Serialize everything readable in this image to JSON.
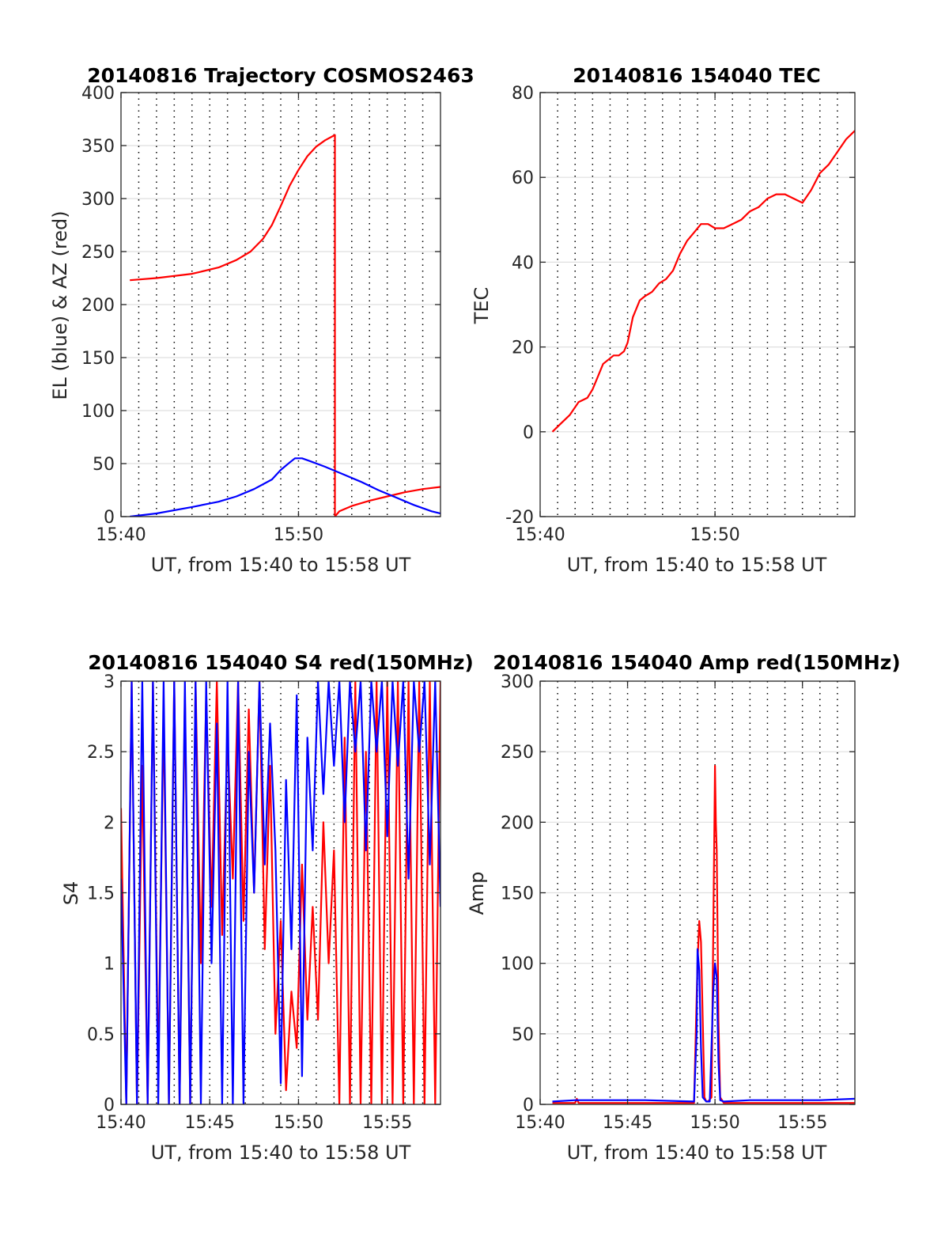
{
  "figure": {
    "background": "#ffffff"
  },
  "colors": {
    "red": "#ff0000",
    "blue": "#0000ff",
    "axis": "#262626",
    "grid": "#dfdfdf",
    "minor_grid": "#000000"
  },
  "chart_data": [
    {
      "id": "trajectory",
      "type": "line",
      "title": "20140816 Trajectory COSMOS2463",
      "xlabel": "UT, from 15:40 to 15:58 UT",
      "ylabel": "EL (blue) & AZ (red)",
      "x_unit": "minutes after 15:40 UT",
      "xlim": [
        0,
        18
      ],
      "ylim": [
        0,
        400
      ],
      "xticks": [
        0,
        10
      ],
      "xtick_labels": [
        "15:40",
        "15:50"
      ],
      "yticks": [
        0,
        50,
        100,
        150,
        200,
        250,
        300,
        350,
        400
      ],
      "ytick_labels": [
        "0",
        "50",
        "100",
        "150",
        "200",
        "250",
        "300",
        "350",
        "400"
      ],
      "grid": "horizontal solid at y ticks, vertical dotted every minute",
      "series": [
        {
          "color": "#ff0000",
          "x": [
            0.5,
            2,
            4,
            5.5,
            6.5,
            7.3,
            8,
            8.5,
            9,
            9.5,
            10,
            10.5,
            11,
            11.5,
            12.05,
            12.05,
            12.05,
            12.3,
            13,
            14,
            15,
            16,
            17,
            18
          ],
          "y": [
            223,
            225,
            229,
            235,
            242,
            250,
            262,
            275,
            293,
            312,
            327,
            340,
            349,
            355,
            360,
            300,
            0,
            5,
            10,
            15,
            19,
            23,
            26,
            28
          ]
        },
        {
          "color": "#0000ff",
          "x": [
            0.5,
            2,
            4,
            5.5,
            6.5,
            7.5,
            8.5,
            9,
            9.5,
            9.8,
            10.2,
            10.7,
            11.5,
            12.5,
            13.5,
            14.5,
            15.5,
            16.5,
            17.5,
            18
          ],
          "y": [
            0,
            3,
            9,
            14,
            19,
            26,
            35,
            44,
            51,
            55,
            55,
            52,
            47,
            40,
            33,
            25,
            18,
            11,
            5,
            3
          ]
        }
      ]
    },
    {
      "id": "tec",
      "type": "line",
      "title": "20140816 154040 TEC",
      "xlabel": "UT, from 15:40 to 15:58 UT",
      "ylabel": "TEC",
      "x_unit": "minutes after 15:40 UT",
      "xlim": [
        0,
        18
      ],
      "ylim": [
        -20,
        80
      ],
      "xticks": [
        0,
        10
      ],
      "xtick_labels": [
        "15:40",
        "15:50"
      ],
      "yticks": [
        -20,
        0,
        20,
        40,
        60,
        80
      ],
      "ytick_labels": [
        "-20",
        "0",
        "20",
        "40",
        "60",
        "80"
      ],
      "grid": "horizontal solid at y ticks, vertical dotted every minute",
      "series": [
        {
          "color": "#ff0000",
          "x": [
            0.7,
            1.2,
            1.7,
            2.2,
            2.7,
            3.0,
            3.3,
            3.6,
            3.9,
            4.2,
            4.5,
            4.8,
            5.0,
            5.3,
            5.7,
            6.0,
            6.4,
            6.8,
            7.2,
            7.6,
            8.0,
            8.4,
            8.8,
            9.2,
            9.6,
            10.0,
            10.5,
            11.0,
            11.5,
            12.0,
            12.5,
            13.0,
            13.5,
            14.0,
            14.5,
            15.0,
            15.5,
            16.0,
            16.5,
            17.0,
            17.5,
            18.0
          ],
          "y": [
            0,
            2,
            4,
            7,
            8,
            10,
            13,
            16,
            17,
            18,
            18,
            19,
            21,
            27,
            31,
            32,
            33,
            35,
            36,
            38,
            42,
            45,
            47,
            49,
            49,
            48,
            48,
            49,
            50,
            52,
            53,
            55,
            56,
            56,
            55,
            54,
            57,
            61,
            63,
            66,
            69,
            71
          ]
        }
      ]
    },
    {
      "id": "s4",
      "type": "line",
      "title": "20140816 154040 S4 red(150MHz)",
      "xlabel": "UT, from 15:40 to 15:58 UT",
      "ylabel": "S4",
      "x_unit": "minutes after 15:40 UT",
      "xlim": [
        0,
        18
      ],
      "ylim": [
        0,
        3
      ],
      "xticks": [
        0,
        5,
        10,
        15
      ],
      "xtick_labels": [
        "15:40",
        "15:45",
        "15:50",
        "15:55"
      ],
      "yticks": [
        0,
        0.5,
        1,
        1.5,
        2,
        2.5,
        3
      ],
      "ytick_labels": [
        "0",
        "0.5",
        "1",
        "1.5",
        "2",
        "2.5",
        "3"
      ],
      "grid": "horizontal solid at y ticks, vertical dotted every minute",
      "series": [
        {
          "color": "#ff0000",
          "x": [
            0.0,
            0.3,
            0.6,
            0.9,
            1.2,
            1.5,
            1.8,
            2.1,
            2.4,
            2.7,
            3.0,
            3.3,
            3.6,
            3.9,
            4.2,
            4.5,
            4.8,
            5.1,
            5.4,
            5.7,
            6.0,
            6.3,
            6.6,
            6.9,
            7.2,
            7.5,
            7.8,
            8.1,
            8.4,
            8.7,
            9.0,
            9.3,
            9.6,
            9.9,
            10.2,
            10.5,
            10.8,
            11.1,
            11.4,
            11.7,
            12.0,
            12.3,
            12.6,
            12.9,
            13.2,
            13.5,
            13.8,
            14.1,
            14.4,
            14.7,
            15.0,
            15.3,
            15.6,
            15.9,
            16.2,
            16.5,
            16.8,
            17.1,
            17.4,
            17.7,
            18.0
          ],
          "y": [
            2.1,
            0.0,
            3.0,
            0.0,
            2.4,
            0.0,
            3.0,
            0.2,
            2.8,
            0.0,
            3.0,
            0.0,
            2.9,
            0.0,
            3.0,
            1.0,
            2.9,
            1.4,
            3.0,
            1.2,
            2.6,
            1.6,
            3.0,
            1.3,
            2.8,
            1.5,
            3.0,
            1.1,
            2.4,
            0.5,
            1.3,
            0.1,
            0.8,
            0.4,
            1.7,
            0.6,
            1.4,
            0.6,
            2.0,
            1.0,
            1.8,
            0.0,
            2.6,
            0.0,
            3.0,
            0.0,
            2.5,
            0.0,
            3.0,
            0.0,
            3.0,
            0.0,
            3.0,
            0.0,
            3.0,
            0.0,
            3.0,
            0.0,
            3.0,
            0.0,
            3.0
          ]
        },
        {
          "color": "#0000ff",
          "x": [
            0.0,
            0.3,
            0.6,
            0.9,
            1.2,
            1.5,
            1.8,
            2.1,
            2.4,
            2.7,
            3.0,
            3.3,
            3.6,
            3.9,
            4.2,
            4.5,
            4.8,
            5.1,
            5.4,
            5.7,
            6.0,
            6.3,
            6.6,
            6.9,
            7.2,
            7.5,
            7.8,
            8.1,
            8.4,
            8.7,
            9.0,
            9.3,
            9.6,
            9.9,
            10.2,
            10.5,
            10.8,
            11.1,
            11.4,
            11.7,
            12.0,
            12.3,
            12.6,
            12.9,
            13.2,
            13.5,
            13.8,
            14.1,
            14.4,
            14.7,
            15.0,
            15.3,
            15.6,
            15.9,
            16.2,
            16.5,
            16.8,
            17.1,
            17.4,
            17.7,
            18.0
          ],
          "y": [
            1.6,
            0.0,
            3.0,
            0.0,
            3.0,
            0.0,
            3.0,
            0.0,
            3.0,
            0.0,
            3.0,
            0.0,
            3.0,
            0.0,
            3.0,
            0.0,
            3.0,
            1.0,
            2.7,
            0.0,
            3.0,
            0.0,
            3.0,
            0.0,
            2.5,
            1.5,
            3.0,
            1.7,
            2.7,
            1.8,
            0.15,
            2.3,
            1.1,
            2.9,
            0.2,
            2.6,
            1.8,
            3.0,
            2.2,
            3.0,
            2.4,
            3.0,
            2.0,
            3.0,
            2.5,
            3.0,
            1.8,
            3.0,
            2.5,
            3.0,
            1.9,
            3.0,
            2.4,
            3.0,
            1.6,
            3.0,
            2.5,
            3.0,
            1.7,
            3.0,
            1.4
          ]
        }
      ]
    },
    {
      "id": "amp",
      "type": "line",
      "title": "20140816 154040 Amp red(150MHz)",
      "xlabel": "UT, from 15:40 to 15:58 UT",
      "ylabel": "Amp",
      "x_unit": "minutes after 15:40 UT",
      "xlim": [
        0,
        18
      ],
      "ylim": [
        0,
        300
      ],
      "xticks": [
        0,
        5,
        10,
        15
      ],
      "xtick_labels": [
        "15:40",
        "15:45",
        "15:50",
        "15:55"
      ],
      "yticks": [
        0,
        50,
        100,
        150,
        200,
        250,
        300
      ],
      "ytick_labels": [
        "0",
        "50",
        "100",
        "150",
        "200",
        "250",
        "300"
      ],
      "grid": "horizontal solid at y ticks, vertical dotted every minute",
      "series": [
        {
          "color": "#ff0000",
          "x": [
            0.7,
            1.5,
            2.0,
            2.1,
            2.2,
            3.0,
            5.0,
            7.0,
            8.8,
            9.0,
            9.1,
            9.2,
            9.3,
            9.4,
            9.5,
            9.6,
            9.8,
            9.9,
            10.0,
            10.05,
            10.1,
            10.2,
            10.3,
            10.5,
            12.0,
            14.0,
            16.0,
            18.0
          ],
          "y": [
            1,
            1,
            1,
            4,
            1,
            1,
            1,
            1,
            1,
            100,
            130,
            115,
            60,
            5,
            2,
            2,
            5,
            120,
            240,
            200,
            180,
            60,
            5,
            1,
            1,
            1,
            1,
            1
          ]
        },
        {
          "color": "#0000ff",
          "x": [
            0.7,
            2.0,
            4.0,
            6.0,
            8.8,
            8.95,
            9.0,
            9.1,
            9.2,
            9.3,
            9.5,
            9.7,
            9.9,
            10.0,
            10.1,
            10.2,
            10.3,
            10.5,
            12.0,
            14.0,
            16.0,
            18.0
          ],
          "y": [
            2,
            3,
            3,
            3,
            2,
            50,
            110,
            95,
            40,
            5,
            2,
            2,
            80,
            100,
            90,
            30,
            3,
            2,
            3,
            3,
            3,
            4
          ]
        }
      ]
    }
  ]
}
